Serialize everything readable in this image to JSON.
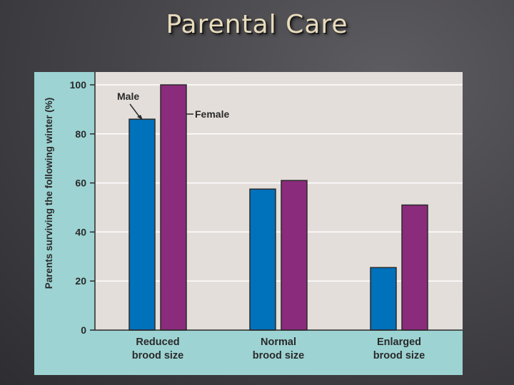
{
  "slide": {
    "title": "Parental Care"
  },
  "colors": {
    "male": "#0071bb",
    "female": "#8b2b7c",
    "plot_bg": "#e3deda",
    "frame_bg": "#9dd3d3"
  },
  "chart_data": {
    "type": "bar",
    "title": "",
    "xlabel": "",
    "ylabel": "Parents surviving the following winter (%)",
    "ylim": [
      0,
      100
    ],
    "yticks": [
      0,
      20,
      40,
      60,
      80,
      100
    ],
    "categories": [
      [
        "Reduced",
        "brood size"
      ],
      [
        "Normal",
        "brood size"
      ],
      [
        "Enlarged",
        "brood size"
      ]
    ],
    "series": [
      {
        "name": "Male",
        "values": [
          86,
          57.5,
          25.5
        ]
      },
      {
        "name": "Female",
        "values": [
          100,
          61,
          51
        ]
      }
    ]
  }
}
